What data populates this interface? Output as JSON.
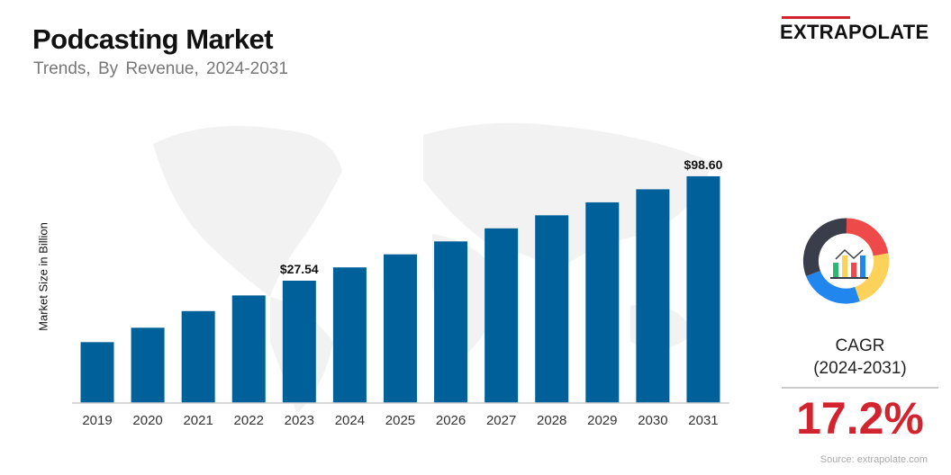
{
  "header": {
    "title": "Podcasting Market",
    "subtitle": "Trends, By Revenue, 2024-2031"
  },
  "logo": {
    "text": "EXTRAPOLATE",
    "accent": "#d1242f"
  },
  "chart_data": {
    "type": "bar",
    "ylabel": "Market Size in Billion",
    "categories": [
      "2019",
      "2020",
      "2021",
      "2022",
      "2023",
      "2024",
      "2025",
      "2026",
      "2027",
      "2028",
      "2029",
      "2030",
      "2031"
    ],
    "values": [
      13.0,
      15.5,
      19.0,
      23.0,
      27.54,
      32.4,
      38.0,
      44.5,
      52.2,
      61.2,
      71.7,
      84.1,
      98.6
    ],
    "data_labels": [
      {
        "category": "2023",
        "text": "$27.54"
      },
      {
        "category": "2031",
        "text": "$98.60"
      }
    ],
    "bar_color": "#00619a",
    "grid": false,
    "legend": "none"
  },
  "cagr": {
    "label_line1": "CAGR",
    "label_line2": "(2024-2031)",
    "value": "17.2%",
    "icon": "donut-chart-analytics-icon"
  },
  "source": "Source: extrapolate.com"
}
